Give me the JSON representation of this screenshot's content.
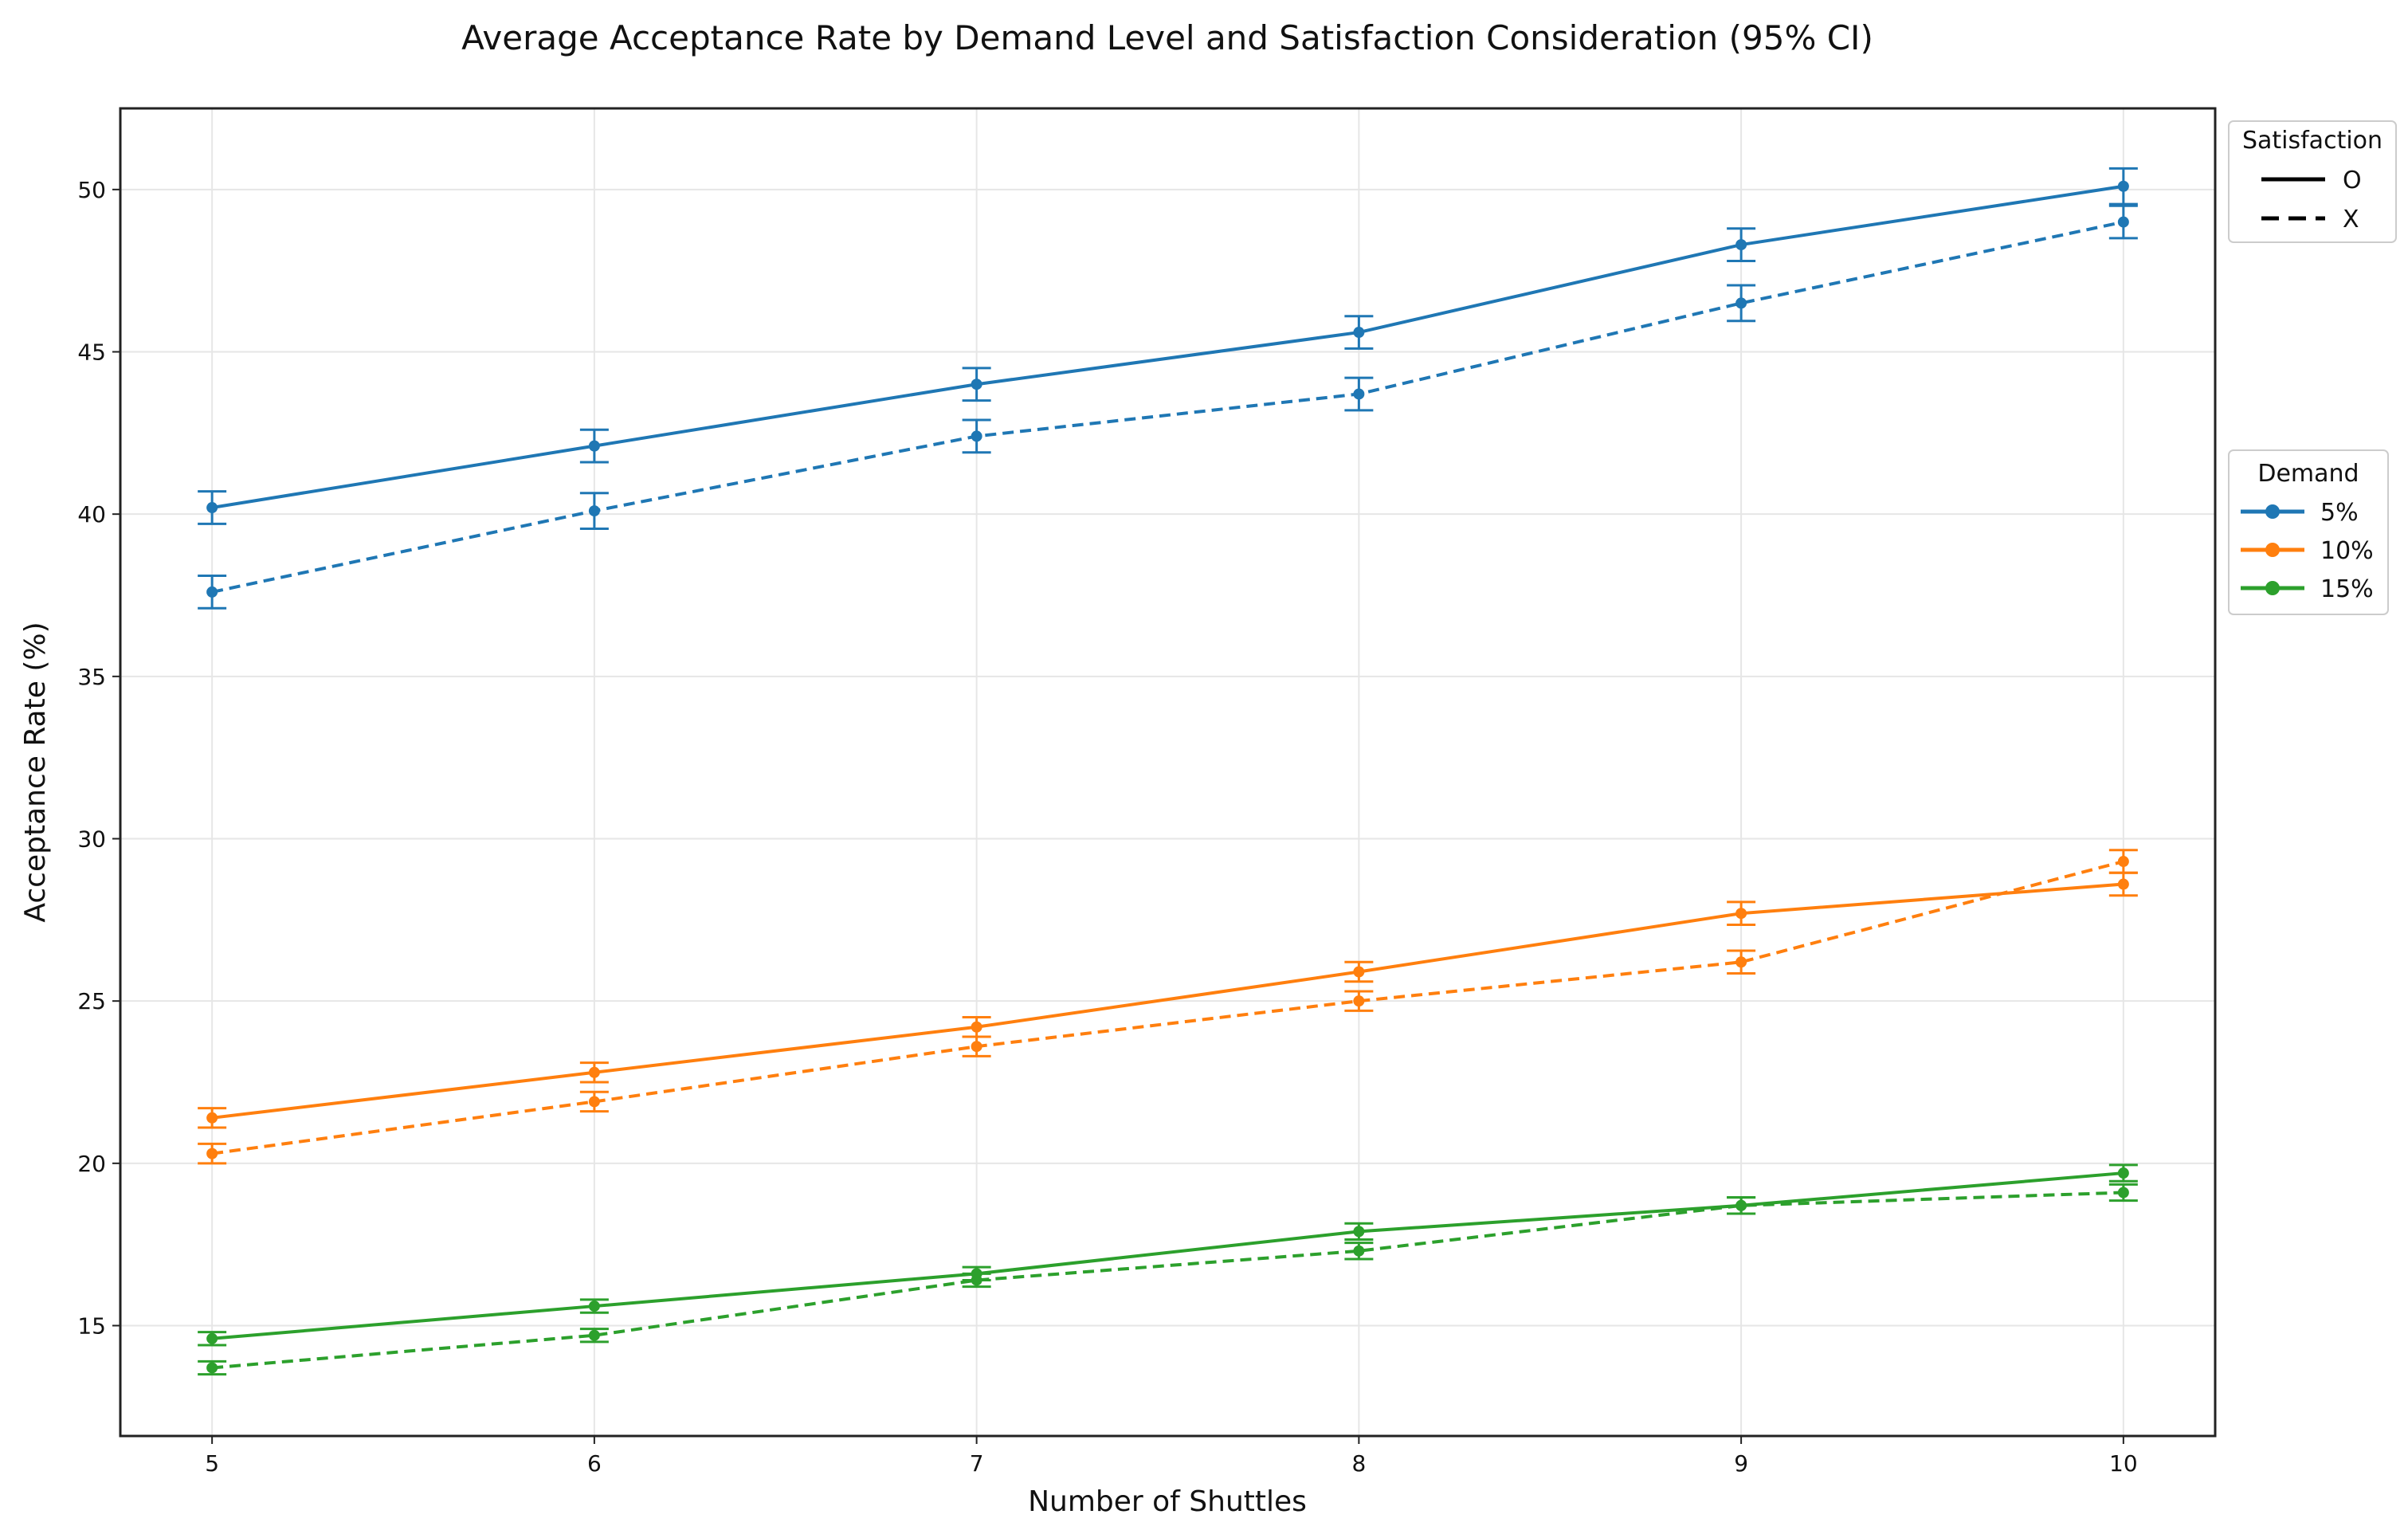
{
  "chart_data": {
    "type": "line",
    "title": "Average Acceptance Rate by Demand Level and Satisfaction Consideration (95% CI)",
    "xlabel": "Number of Shuttles",
    "ylabel": "Acceptance Rate (%)",
    "x": [
      5,
      6,
      7,
      8,
      9,
      10
    ],
    "x_ticks": [
      "5",
      "6",
      "7",
      "8",
      "9",
      "10"
    ],
    "y_ticks": [
      "15",
      "20",
      "25",
      "30",
      "35",
      "40",
      "45",
      "50"
    ],
    "y_tick_values": [
      15,
      20,
      25,
      30,
      35,
      40,
      45,
      50
    ],
    "xlim": [
      4.76,
      10.24
    ],
    "ylim": [
      11.6,
      52.5
    ],
    "grid": true,
    "error_bars": "95% CI",
    "legends": {
      "satisfaction": {
        "title": "Satisfaction",
        "placement": "top-right outside",
        "entries": [
          {
            "label": "O",
            "style": "solid"
          },
          {
            "label": "X",
            "style": "dashed"
          }
        ]
      },
      "demand": {
        "title": "Demand",
        "placement": "middle-right outside",
        "entries": [
          {
            "label": "5%",
            "color": "#1f77b4"
          },
          {
            "label": "10%",
            "color": "#ff7f0e"
          },
          {
            "label": "15%",
            "color": "#2ca02c"
          }
        ]
      }
    },
    "series": [
      {
        "demand": "5%",
        "satisfaction": "O",
        "color": "#1f77b4",
        "style": "solid",
        "values": [
          40.2,
          42.1,
          44.0,
          45.6,
          48.3,
          50.1
        ],
        "ci": [
          0.5,
          0.5,
          0.5,
          0.5,
          0.5,
          0.55
        ]
      },
      {
        "demand": "5%",
        "satisfaction": "X",
        "color": "#1f77b4",
        "style": "dashed",
        "values": [
          37.6,
          40.1,
          42.4,
          43.7,
          46.5,
          49.0
        ],
        "ci": [
          0.5,
          0.55,
          0.5,
          0.5,
          0.55,
          0.5
        ]
      },
      {
        "demand": "10%",
        "satisfaction": "O",
        "color": "#ff7f0e",
        "style": "solid",
        "values": [
          21.4,
          22.8,
          24.2,
          25.9,
          27.7,
          28.6
        ],
        "ci": [
          0.3,
          0.3,
          0.3,
          0.3,
          0.35,
          0.35
        ]
      },
      {
        "demand": "10%",
        "satisfaction": "X",
        "color": "#ff7f0e",
        "style": "dashed",
        "values": [
          20.3,
          21.9,
          23.6,
          25.0,
          26.2,
          29.3
        ],
        "ci": [
          0.3,
          0.3,
          0.3,
          0.3,
          0.35,
          0.35
        ]
      },
      {
        "demand": "15%",
        "satisfaction": "O",
        "color": "#2ca02c",
        "style": "solid",
        "values": [
          14.6,
          15.6,
          16.6,
          17.9,
          18.7,
          19.7
        ],
        "ci": [
          0.2,
          0.2,
          0.2,
          0.25,
          0.25,
          0.25
        ]
      },
      {
        "demand": "15%",
        "satisfaction": "X",
        "color": "#2ca02c",
        "style": "dashed",
        "values": [
          13.7,
          14.7,
          16.4,
          17.3,
          18.7,
          19.1
        ],
        "ci": [
          0.2,
          0.2,
          0.2,
          0.25,
          0.25,
          0.25
        ]
      }
    ]
  }
}
